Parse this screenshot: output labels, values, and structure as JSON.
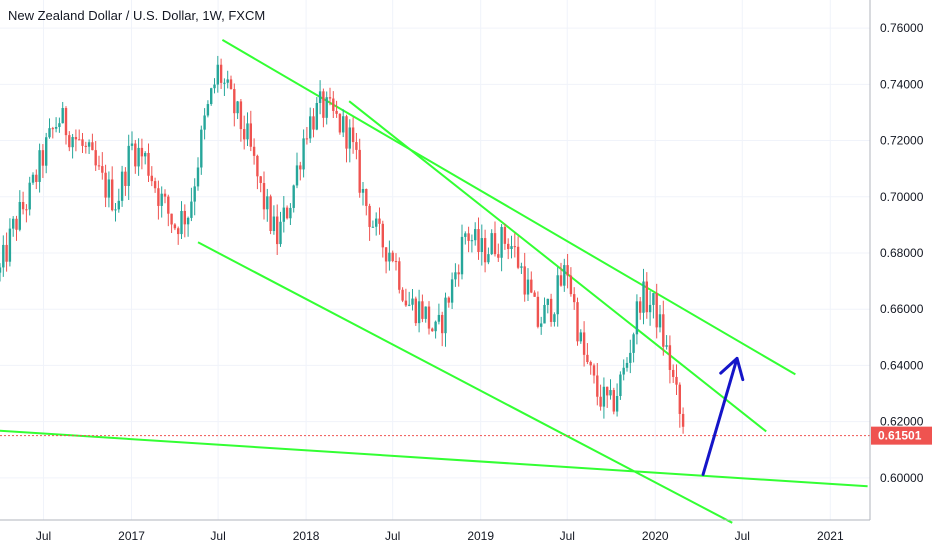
{
  "header": {
    "title": "New Zealand Dollar / U.S. Dollar, 1W, FXCM"
  },
  "colors": {
    "up": "#26a69a",
    "down": "#ef5350",
    "trendline": "#33ff33",
    "arrow": "#1515c8",
    "last_price": "#ef5350",
    "grid": "#f0f3fa"
  },
  "chart_data": {
    "type": "candlestick",
    "title": "New Zealand Dollar / U.S. Dollar, 1W, FXCM",
    "x_ticks": [
      "Jul",
      "2017",
      "Jul",
      "2018",
      "Jul",
      "2019",
      "Jul",
      "2020",
      "Jul",
      "2021"
    ],
    "y_ticks": [
      "0.76000",
      "0.74000",
      "0.72000",
      "0.70000",
      "0.68000",
      "0.66000",
      "0.64000",
      "0.62000",
      "0.60000"
    ],
    "ylim": [
      0.585,
      0.77
    ],
    "last_price": "0.61501",
    "path": [
      [
        "2016-04-01",
        0.673
      ],
      [
        "2016-05-01",
        0.69
      ],
      [
        "2016-06-01",
        0.7
      ],
      [
        "2016-07-01",
        0.715
      ],
      [
        "2016-08-01",
        0.728
      ],
      [
        "2016-09-01",
        0.722
      ],
      [
        "2016-10-01",
        0.715
      ],
      [
        "2016-11-01",
        0.705
      ],
      [
        "2016-12-01",
        0.698
      ],
      [
        "2017-01-01",
        0.718
      ],
      [
        "2017-02-01",
        0.713
      ],
      [
        "2017-03-01",
        0.7
      ],
      [
        "2017-04-01",
        0.69
      ],
      [
        "2017-05-01",
        0.695
      ],
      [
        "2017-06-01",
        0.725
      ],
      [
        "2017-07-01",
        0.745
      ],
      [
        "2017-08-01",
        0.732
      ],
      [
        "2017-09-01",
        0.72
      ],
      [
        "2017-10-01",
        0.7
      ],
      [
        "2017-11-01",
        0.685
      ],
      [
        "2017-12-01",
        0.7
      ],
      [
        "2018-01-01",
        0.725
      ],
      [
        "2018-02-01",
        0.732
      ],
      [
        "2018-03-01",
        0.728
      ],
      [
        "2018-04-01",
        0.722
      ],
      [
        "2018-05-01",
        0.7
      ],
      [
        "2018-06-01",
        0.685
      ],
      [
        "2018-07-01",
        0.68
      ],
      [
        "2018-08-01",
        0.662
      ],
      [
        "2018-09-01",
        0.66
      ],
      [
        "2018-10-01",
        0.65
      ],
      [
        "2018-11-01",
        0.668
      ],
      [
        "2018-12-01",
        0.688
      ],
      [
        "2019-01-01",
        0.68
      ],
      [
        "2019-02-01",
        0.684
      ],
      [
        "2019-03-01",
        0.685
      ],
      [
        "2019-04-01",
        0.672
      ],
      [
        "2019-05-01",
        0.655
      ],
      [
        "2019-06-01",
        0.662
      ],
      [
        "2019-07-01",
        0.675
      ],
      [
        "2019-08-01",
        0.645
      ],
      [
        "2019-09-01",
        0.63
      ],
      [
        "2019-10-01",
        0.625
      ],
      [
        "2019-11-01",
        0.64
      ],
      [
        "2019-12-01",
        0.665
      ],
      [
        "2020-01-01",
        0.66
      ],
      [
        "2020-02-01",
        0.64
      ],
      [
        "2020-03-01",
        0.615
      ]
    ],
    "trendlines": [
      {
        "from": [
          "2017-07-10",
          0.7558
        ],
        "to": [
          "2020-10-20",
          0.6368
        ]
      },
      {
        "from": [
          "2018-04-01",
          0.734
        ],
        "to": [
          "2020-08-20",
          0.6165
        ]
      },
      {
        "from": [
          "2017-05-20",
          0.6838
        ],
        "to": [
          "2020-06-10",
          0.584
        ]
      },
      {
        "from": [
          "2016-03-10",
          0.617
        ],
        "to": [
          "2021-03-20",
          0.597
        ]
      }
    ],
    "arrow": {
      "from": [
        "2020-04-10",
        0.6012
      ],
      "to": [
        "2020-06-20",
        0.6425
      ]
    }
  }
}
